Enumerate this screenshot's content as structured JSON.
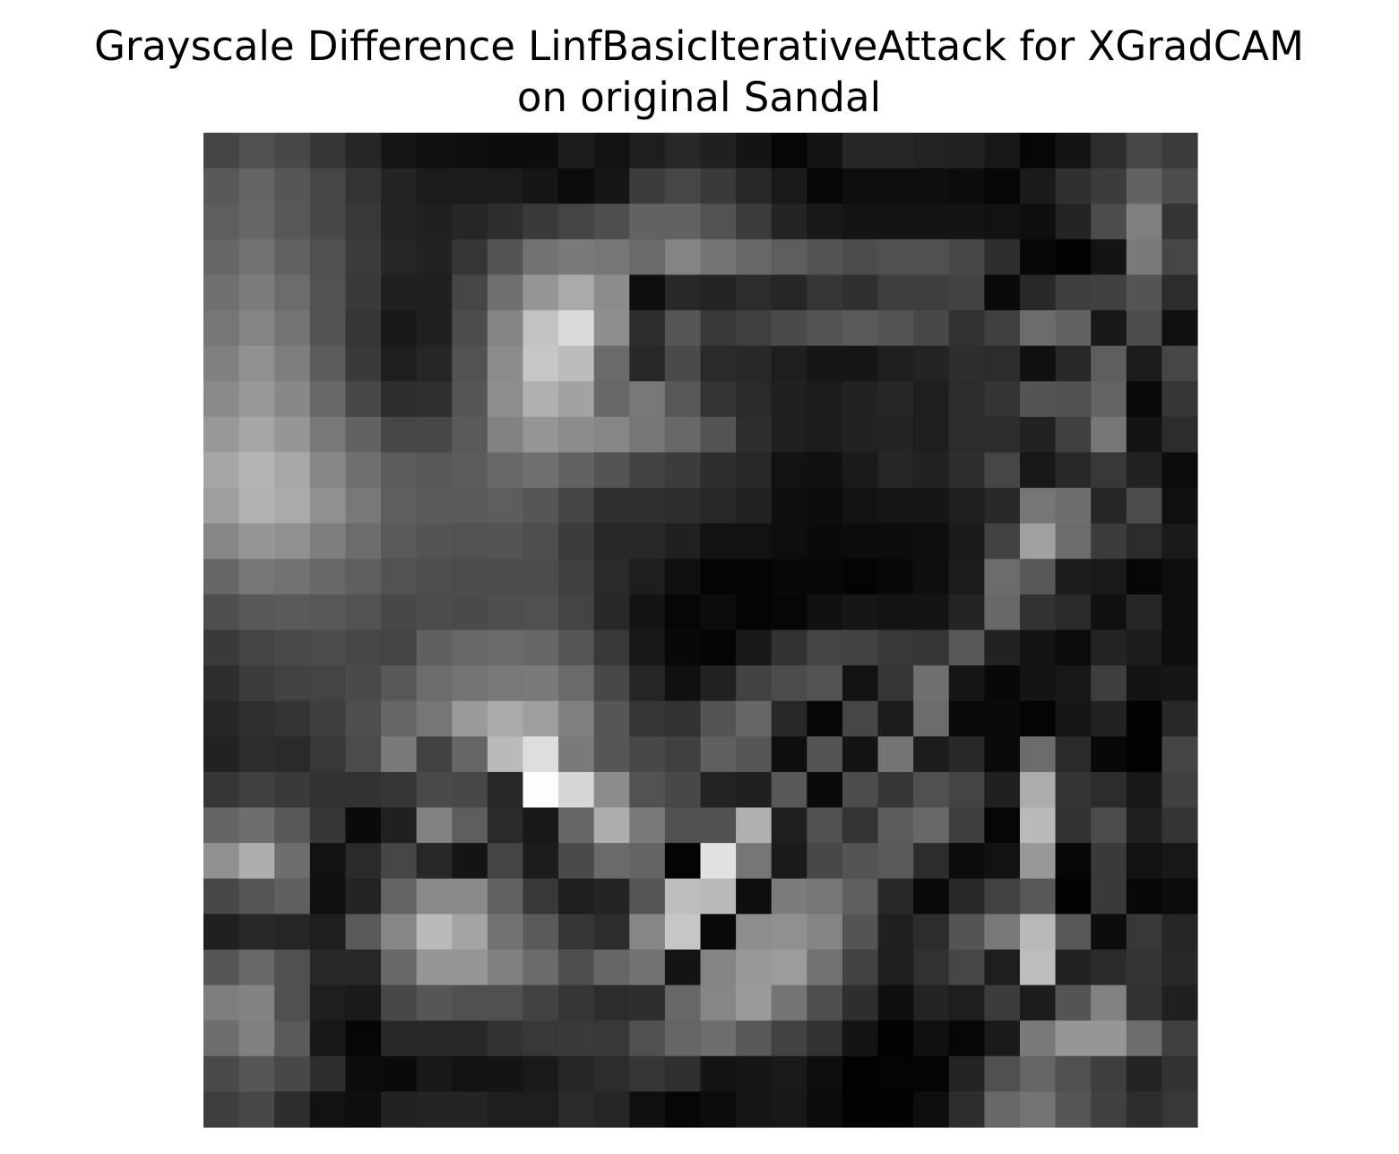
{
  "chart_data": {
    "type": "heatmap",
    "title": "Grayscale Difference LinfBasicIterativeAttack for XGradCAM\non original Sandal",
    "title_lines": [
      "Grayscale Difference LinfBasicIterativeAttack for XGradCAM",
      "on original Sandal"
    ],
    "colormap": "gray",
    "value_range": [
      0,
      255
    ],
    "rows": 28,
    "cols": 28,
    "axes_visible": false,
    "values": [
      [
        68,
        81,
        72,
        55,
        38,
        22,
        16,
        15,
        12,
        13,
        29,
        18,
        30,
        40,
        32,
        20,
        6,
        20,
        38,
        38,
        35,
        34,
        24,
        6,
        20,
        44,
        70,
        59
      ],
      [
        88,
        100,
        86,
        70,
        52,
        35,
        28,
        28,
        28,
        22,
        12,
        22,
        60,
        70,
        58,
        40,
        26,
        6,
        14,
        14,
        14,
        12,
        6,
        26,
        48,
        60,
        98,
        76
      ],
      [
        94,
        102,
        88,
        72,
        56,
        36,
        32,
        38,
        46,
        58,
        68,
        78,
        98,
        98,
        82,
        60,
        36,
        24,
        20,
        20,
        20,
        20,
        18,
        14,
        36,
        76,
        128,
        52
      ],
      [
        102,
        114,
        98,
        80,
        60,
        38,
        34,
        54,
        84,
        114,
        122,
        118,
        106,
        132,
        116,
        104,
        94,
        84,
        76,
        80,
        80,
        72,
        46,
        8,
        2,
        20,
        122,
        70
      ],
      [
        112,
        124,
        108,
        82,
        58,
        32,
        32,
        70,
        112,
        150,
        170,
        140,
        14,
        40,
        36,
        44,
        38,
        54,
        48,
        62,
        62,
        66,
        10,
        40,
        62,
        64,
        84,
        44
      ],
      [
        118,
        132,
        116,
        84,
        54,
        24,
        32,
        76,
        132,
        194,
        218,
        142,
        46,
        86,
        56,
        64,
        74,
        84,
        90,
        84,
        72,
        50,
        64,
        108,
        98,
        24,
        76,
        16
      ],
      [
        128,
        144,
        126,
        92,
        58,
        30,
        38,
        82,
        140,
        198,
        188,
        106,
        40,
        74,
        42,
        40,
        30,
        22,
        22,
        30,
        36,
        46,
        44,
        16,
        40,
        94,
        28,
        70
      ],
      [
        138,
        152,
        136,
        104,
        72,
        46,
        48,
        86,
        142,
        176,
        162,
        104,
        120,
        88,
        52,
        42,
        32,
        28,
        34,
        38,
        30,
        44,
        52,
        84,
        80,
        100,
        10,
        54
      ],
      [
        152,
        166,
        150,
        120,
        98,
        70,
        72,
        90,
        130,
        150,
        140,
        134,
        118,
        104,
        84,
        46,
        32,
        28,
        34,
        36,
        30,
        44,
        44,
        34,
        64,
        118,
        20,
        44
      ],
      [
        166,
        180,
        168,
        136,
        112,
        92,
        88,
        92,
        104,
        112,
        98,
        84,
        66,
        60,
        46,
        40,
        18,
        16,
        26,
        38,
        34,
        46,
        70,
        24,
        40,
        56,
        34,
        12
      ],
      [
        158,
        178,
        170,
        144,
        120,
        94,
        90,
        90,
        94,
        86,
        68,
        48,
        48,
        46,
        40,
        34,
        14,
        12,
        18,
        22,
        22,
        30,
        40,
        118,
        110,
        38,
        76,
        16
      ],
      [
        134,
        150,
        144,
        126,
        108,
        90,
        84,
        82,
        84,
        78,
        60,
        40,
        40,
        32,
        18,
        18,
        14,
        10,
        12,
        12,
        14,
        26,
        66,
        160,
        108,
        60,
        44,
        26
      ],
      [
        102,
        118,
        114,
        104,
        94,
        82,
        78,
        76,
        76,
        76,
        64,
        42,
        30,
        16,
        4,
        4,
        8,
        8,
        4,
        8,
        14,
        28,
        108,
        88,
        28,
        26,
        6,
        14
      ],
      [
        78,
        88,
        90,
        88,
        82,
        72,
        76,
        74,
        78,
        80,
        68,
        40,
        20,
        6,
        12,
        4,
        6,
        16,
        22,
        20,
        20,
        36,
        104,
        50,
        42,
        16,
        38,
        14
      ],
      [
        58,
        68,
        74,
        76,
        70,
        68,
        96,
        104,
        106,
        102,
        86,
        56,
        24,
        8,
        4,
        24,
        50,
        68,
        66,
        56,
        54,
        88,
        34,
        20,
        12,
        36,
        28,
        14
      ],
      [
        46,
        60,
        66,
        68,
        74,
        88,
        108,
        116,
        120,
        122,
        106,
        72,
        38,
        16,
        34,
        66,
        76,
        82,
        18,
        54,
        112,
        22,
        8,
        20,
        24,
        62,
        20,
        22
      ],
      [
        38,
        48,
        52,
        62,
        78,
        102,
        118,
        154,
        170,
        158,
        128,
        86,
        54,
        50,
        84,
        102,
        40,
        8,
        70,
        28,
        108,
        10,
        10,
        4,
        22,
        34,
        2,
        40
      ],
      [
        34,
        44,
        42,
        56,
        76,
        122,
        66,
        102,
        186,
        222,
        122,
        86,
        72,
        64,
        96,
        86,
        14,
        84,
        20,
        116,
        28,
        40,
        10,
        108,
        42,
        8,
        2,
        68
      ],
      [
        54,
        64,
        58,
        50,
        50,
        54,
        74,
        72,
        40,
        254,
        214,
        140,
        82,
        72,
        36,
        32,
        88,
        10,
        76,
        54,
        80,
        68,
        32,
        172,
        52,
        44,
        24,
        64
      ],
      [
        100,
        110,
        88,
        54,
        10,
        32,
        130,
        94,
        42,
        24,
        102,
        174,
        122,
        80,
        80,
        176,
        30,
        80,
        52,
        92,
        104,
        62,
        6,
        186,
        50,
        76,
        32,
        52
      ],
      [
        144,
        174,
        110,
        18,
        42,
        70,
        40,
        20,
        68,
        28,
        74,
        106,
        100,
        4,
        226,
        118,
        26,
        72,
        84,
        90,
        44,
        12,
        18,
        152,
        6,
        58,
        18,
        24
      ],
      [
        72,
        86,
        96,
        16,
        36,
        100,
        138,
        138,
        98,
        56,
        30,
        36,
        86,
        190,
        186,
        14,
        124,
        118,
        94,
        40,
        10,
        40,
        66,
        88,
        2,
        58,
        8,
        12
      ],
      [
        32,
        40,
        38,
        30,
        90,
        134,
        186,
        164,
        114,
        90,
        54,
        44,
        134,
        198,
        10,
        142,
        144,
        132,
        84,
        32,
        44,
        84,
        120,
        184,
        88,
        12,
        56,
        38
      ],
      [
        86,
        104,
        80,
        40,
        40,
        104,
        150,
        150,
        128,
        106,
        78,
        102,
        114,
        20,
        132,
        152,
        156,
        114,
        66,
        30,
        50,
        70,
        30,
        190,
        34,
        42,
        52,
        40
      ],
      [
        126,
        130,
        80,
        30,
        26,
        72,
        86,
        80,
        80,
        66,
        54,
        44,
        46,
        104,
        134,
        154,
        116,
        78,
        46,
        14,
        36,
        30,
        60,
        28,
        84,
        130,
        50,
        32
      ],
      [
        110,
        128,
        90,
        24,
        6,
        40,
        40,
        40,
        50,
        56,
        58,
        56,
        80,
        102,
        110,
        88,
        66,
        50,
        20,
        2,
        16,
        6,
        26,
        122,
        150,
        150,
        110,
        64
      ],
      [
        74,
        86,
        72,
        46,
        12,
        10,
        24,
        18,
        20,
        26,
        38,
        44,
        54,
        48,
        20,
        22,
        26,
        14,
        2,
        4,
        4,
        36,
        80,
        102,
        80,
        62,
        36,
        50
      ],
      [
        62,
        72,
        46,
        18,
        14,
        34,
        36,
        36,
        30,
        30,
        42,
        38,
        16,
        6,
        12,
        22,
        24,
        12,
        2,
        2,
        14,
        46,
        104,
        116,
        86,
        64,
        46,
        56
      ]
    ]
  }
}
